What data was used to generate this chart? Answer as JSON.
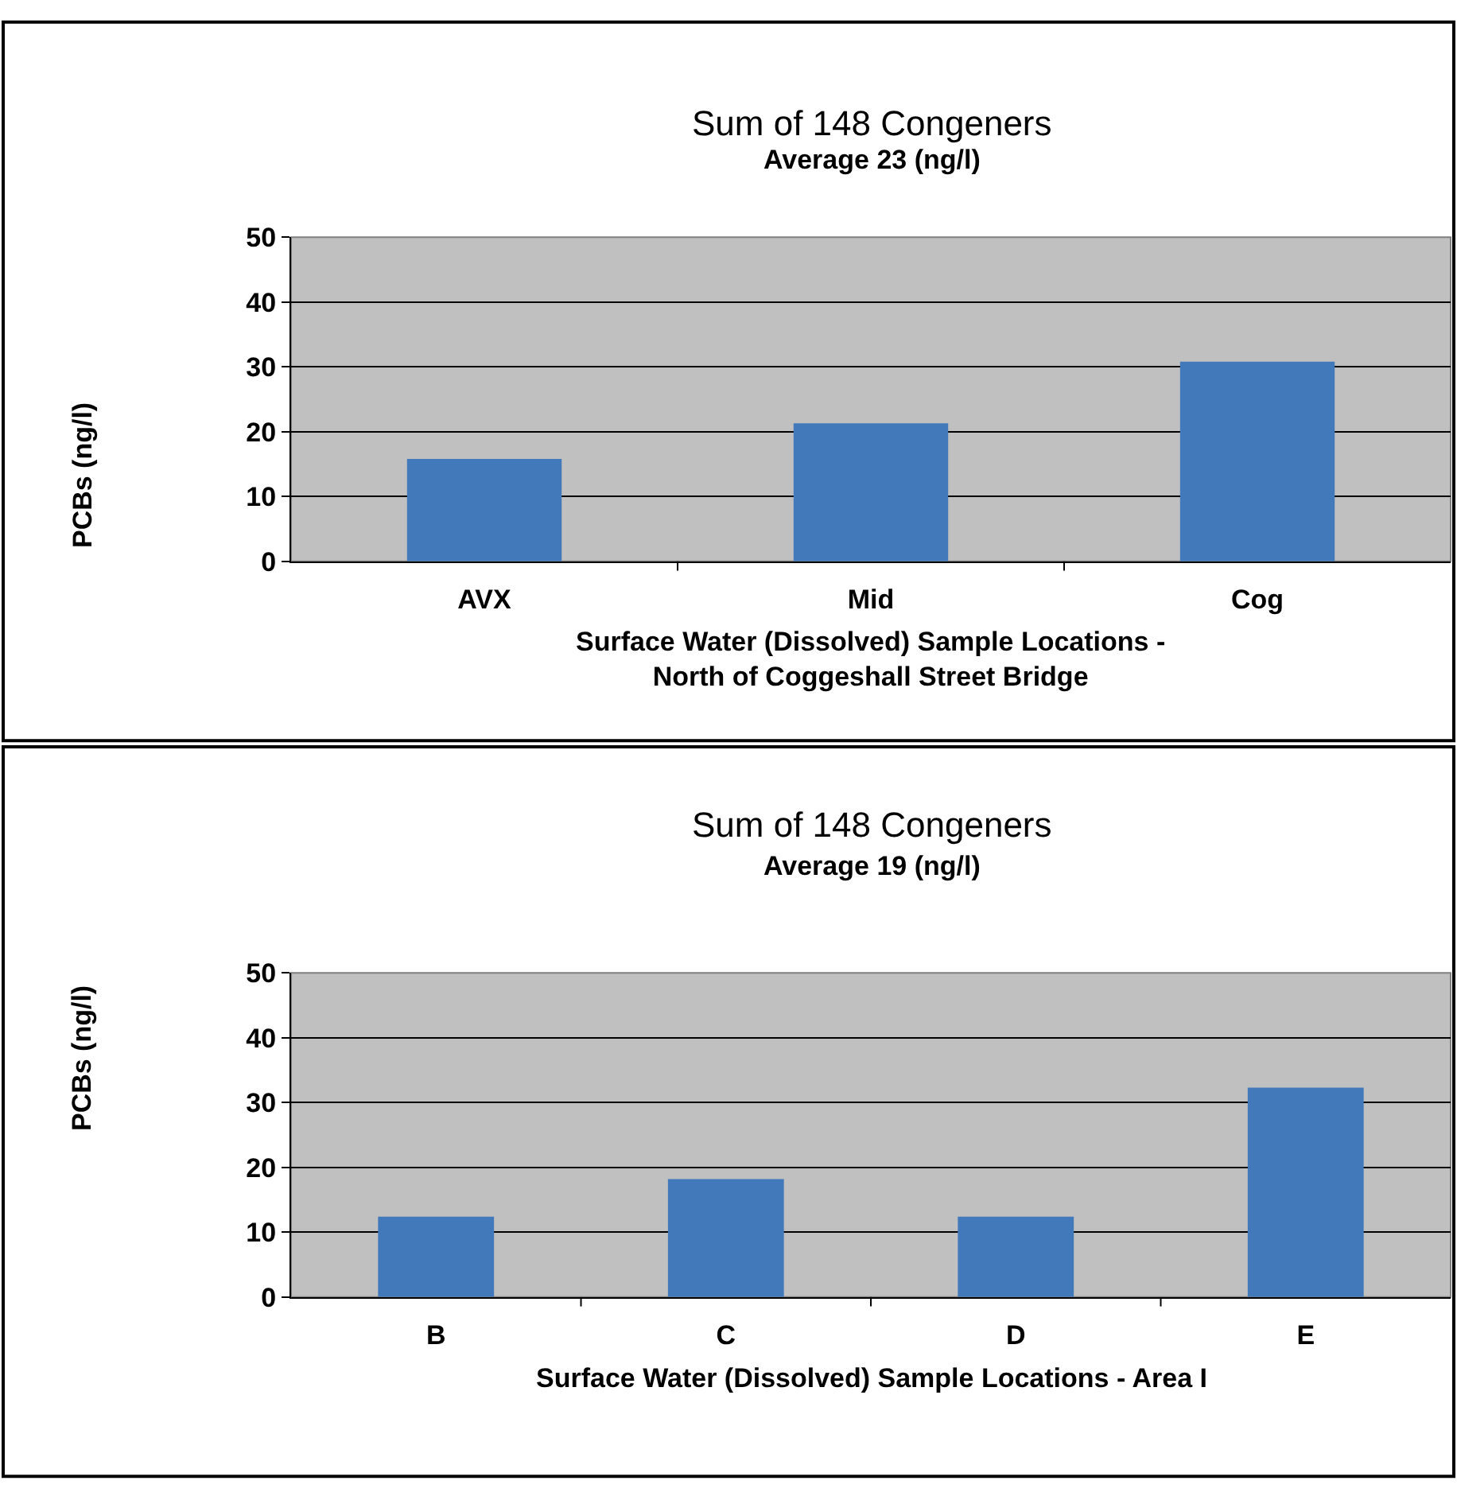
{
  "chart_data": [
    {
      "type": "bar",
      "title": "Sum of 148 Congeners",
      "subtitle": "Average 23 (ng/l)",
      "xlabel": "Surface Water (Dissolved) Sample Locations -\nNorth of Coggeshall Street Bridge",
      "ylabel": "PCBs (ng/l)",
      "categories": [
        "AVX",
        "Mid",
        "Cog"
      ],
      "values": [
        15.8,
        21.3,
        30.8
      ],
      "color": "#4179bb",
      "ylim": [
        0,
        50
      ],
      "yticks": [
        0,
        10,
        20,
        30,
        40,
        50
      ],
      "grid": "y"
    },
    {
      "type": "bar",
      "title": "Sum of 148 Congeners",
      "subtitle": "Average 19 (ng/l)",
      "xlabel": "Surface Water (Dissolved) Sample Locations - Area I",
      "ylabel": "PCBs (ng/l)",
      "categories": [
        "B",
        "C",
        "D",
        "E"
      ],
      "values": [
        12.4,
        18.2,
        12.4,
        32.3
      ],
      "color": "#4179bb",
      "ylim": [
        0,
        50
      ],
      "yticks": [
        0,
        10,
        20,
        30,
        40,
        50
      ],
      "grid": "y"
    }
  ]
}
